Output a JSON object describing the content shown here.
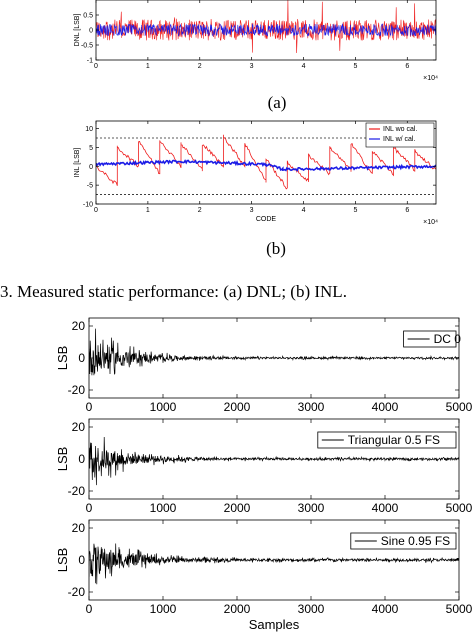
{
  "captions": {
    "a": "(a)",
    "b": "(b)",
    "figure": "3.   Measured static performance: (a) DNL; (b) INL."
  },
  "colors": {
    "red": "#ee1c1c",
    "blue": "#1c1ce6",
    "black": "#000000",
    "ref": "#222222"
  },
  "chart_data": [
    {
      "id": "dnl",
      "type": "line",
      "ylabel": "DNL [LSB]",
      "xlabel": "",
      "x_exponent": "×10⁴",
      "xlim": [
        0,
        65536
      ],
      "ylim": [
        -1,
        1
      ],
      "xticks": [
        0,
        1,
        2,
        3,
        4,
        5,
        6
      ],
      "yticks": [
        -1,
        -0.5,
        0,
        0.5
      ],
      "ytick_labels": [
        "-1",
        "-0.5",
        "0",
        "0.5"
      ],
      "series": [
        {
          "color": "#ee1c1c",
          "band": 0.35
        },
        {
          "color": "#1c1ce6",
          "band": 0.2
        }
      ]
    },
    {
      "id": "inl",
      "type": "line",
      "ylabel": "INL [LSB]",
      "xlabel": "CODE",
      "x_exponent": "×10⁴",
      "xlim": [
        0,
        65536
      ],
      "ylim": [
        -10,
        12
      ],
      "xticks": [
        0,
        1,
        2,
        3,
        4,
        5,
        6
      ],
      "yticks": [
        -10,
        -5,
        0,
        5,
        10
      ],
      "reference_lines": [
        7.5,
        -7.5
      ],
      "legend": {
        "position": "top-right",
        "items": [
          {
            "name": "INL wo cal.",
            "color": "#ee1c1c"
          },
          {
            "name": "INL w/ cal.",
            "color": "#1c1ce6"
          }
        ]
      },
      "series": [
        {
          "name": "INL wo cal.",
          "color": "#ee1c1c",
          "x": [
            0,
            4096,
            4096,
            8192,
            8192,
            12288,
            12288,
            16384,
            16384,
            20480,
            20480,
            24576,
            24576,
            28672,
            28672,
            32768,
            32768,
            36864,
            36864,
            40960,
            40960,
            45056,
            45056,
            49152,
            49152,
            53248,
            53248,
            57344,
            57344,
            61440,
            61440,
            65536
          ],
          "y": [
            0,
            -5,
            5,
            0,
            7,
            -2,
            7,
            0,
            6,
            -1,
            6,
            0,
            8,
            0,
            6,
            -4,
            2,
            -6,
            1,
            -4,
            3,
            -2,
            5,
            -1,
            6,
            -2,
            4,
            -2,
            5,
            -1,
            4,
            -1
          ]
        },
        {
          "name": "INL w/ cal.",
          "color": "#1c1ce6",
          "x": [
            0,
            16384,
            32768,
            36000,
            49152,
            65536
          ],
          "y": [
            0.5,
            1.3,
            0.5,
            -0.8,
            -0.5,
            0.0
          ]
        }
      ]
    },
    {
      "id": "dc0",
      "type": "line",
      "ylabel": "LSB",
      "xlabel": "",
      "xlim": [
        0,
        5000
      ],
      "ylim": [
        -25,
        25
      ],
      "xticks": [
        0,
        1000,
        2000,
        3000,
        4000,
        5000
      ],
      "yticks": [
        -20,
        0,
        20
      ],
      "legend": {
        "position": "top-right",
        "items": [
          {
            "name": "DC 0",
            "color": "#000000"
          }
        ]
      },
      "series": [
        {
          "name": "DC 0",
          "color": "#000000",
          "peak": 25,
          "floor": 1.0
        }
      ]
    },
    {
      "id": "tri",
      "type": "line",
      "ylabel": "LSB",
      "xlabel": "",
      "xlim": [
        0,
        5000
      ],
      "ylim": [
        -25,
        25
      ],
      "xticks": [
        0,
        1000,
        2000,
        3000,
        4000,
        5000
      ],
      "yticks": [
        -20,
        0,
        20
      ],
      "legend": {
        "position": "top-right",
        "items": [
          {
            "name": "Triangular 0.5 FS",
            "color": "#000000"
          }
        ]
      },
      "series": [
        {
          "name": "Triangular 0.5 FS",
          "color": "#000000",
          "peak": 22,
          "floor": 1.2
        }
      ]
    },
    {
      "id": "sine",
      "type": "line",
      "ylabel": "LSB",
      "xlabel": "Samples",
      "xlim": [
        0,
        5000
      ],
      "ylim": [
        -25,
        25
      ],
      "xticks": [
        0,
        1000,
        2000,
        3000,
        4000,
        5000
      ],
      "yticks": [
        -20,
        0,
        20
      ],
      "legend": {
        "position": "top-right",
        "items": [
          {
            "name": "Sine 0.95 FS",
            "color": "#000000"
          }
        ]
      },
      "series": [
        {
          "name": "Sine 0.95 FS",
          "color": "#000000",
          "peak": 24,
          "floor": 1.5
        }
      ]
    }
  ]
}
